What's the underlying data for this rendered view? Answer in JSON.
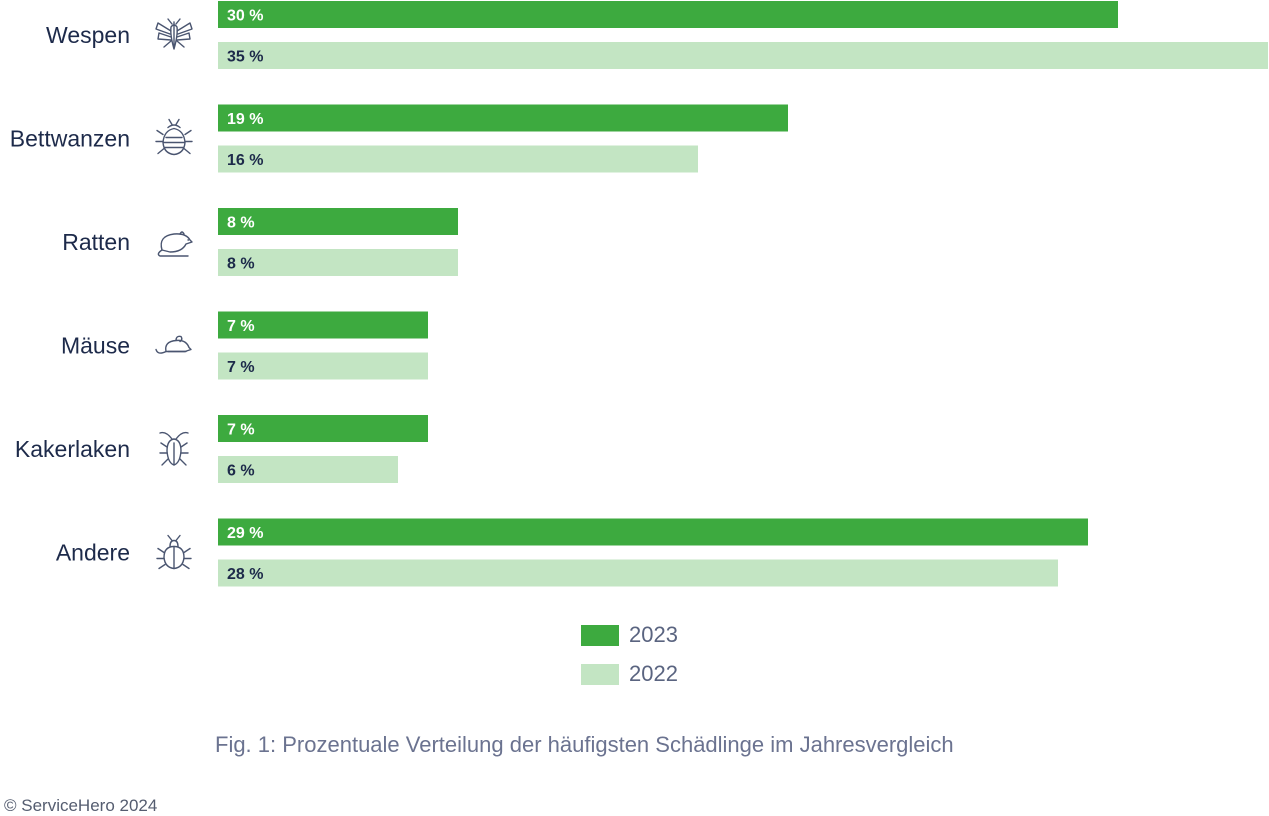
{
  "chart_data": {
    "type": "bar",
    "orientation": "horizontal",
    "categories": [
      "Wespen",
      "Bettwanzen",
      "Ratten",
      "Mäuse",
      "Kakerlaken",
      "Andere"
    ],
    "category_icons": [
      "wasp-icon",
      "bedbug-icon",
      "rat-icon",
      "mouse-icon",
      "cockroach-icon",
      "beetle-icon"
    ],
    "series": [
      {
        "name": "2023",
        "values": [
          30,
          19,
          8,
          7,
          7,
          29
        ],
        "labels": [
          "30 %",
          "19 %",
          "8 %",
          "7 %",
          "7 %",
          "29 %"
        ],
        "color": "#3daa3f",
        "label_color": "#ffffff"
      },
      {
        "name": "2022",
        "values": [
          35,
          16,
          8,
          7,
          6,
          28
        ],
        "labels": [
          "35 %",
          "16 %",
          "8 %",
          "7 %",
          "6 %",
          "28 %"
        ],
        "color": "#c3e5c3",
        "label_color": "#1d2a4a"
      }
    ],
    "xlim": [
      0,
      35
    ],
    "grid": false,
    "legend_position": "bottom-center"
  },
  "legend": {
    "items": [
      {
        "label": "2023",
        "color": "#3daa3f"
      },
      {
        "label": "2022",
        "color": "#c3e5c3"
      }
    ]
  },
  "caption": "Fig. 1: Prozentuale Verteilung der häufigsten Schädlinge im Jahresvergleich",
  "copyright": "© ServiceHero 2024"
}
